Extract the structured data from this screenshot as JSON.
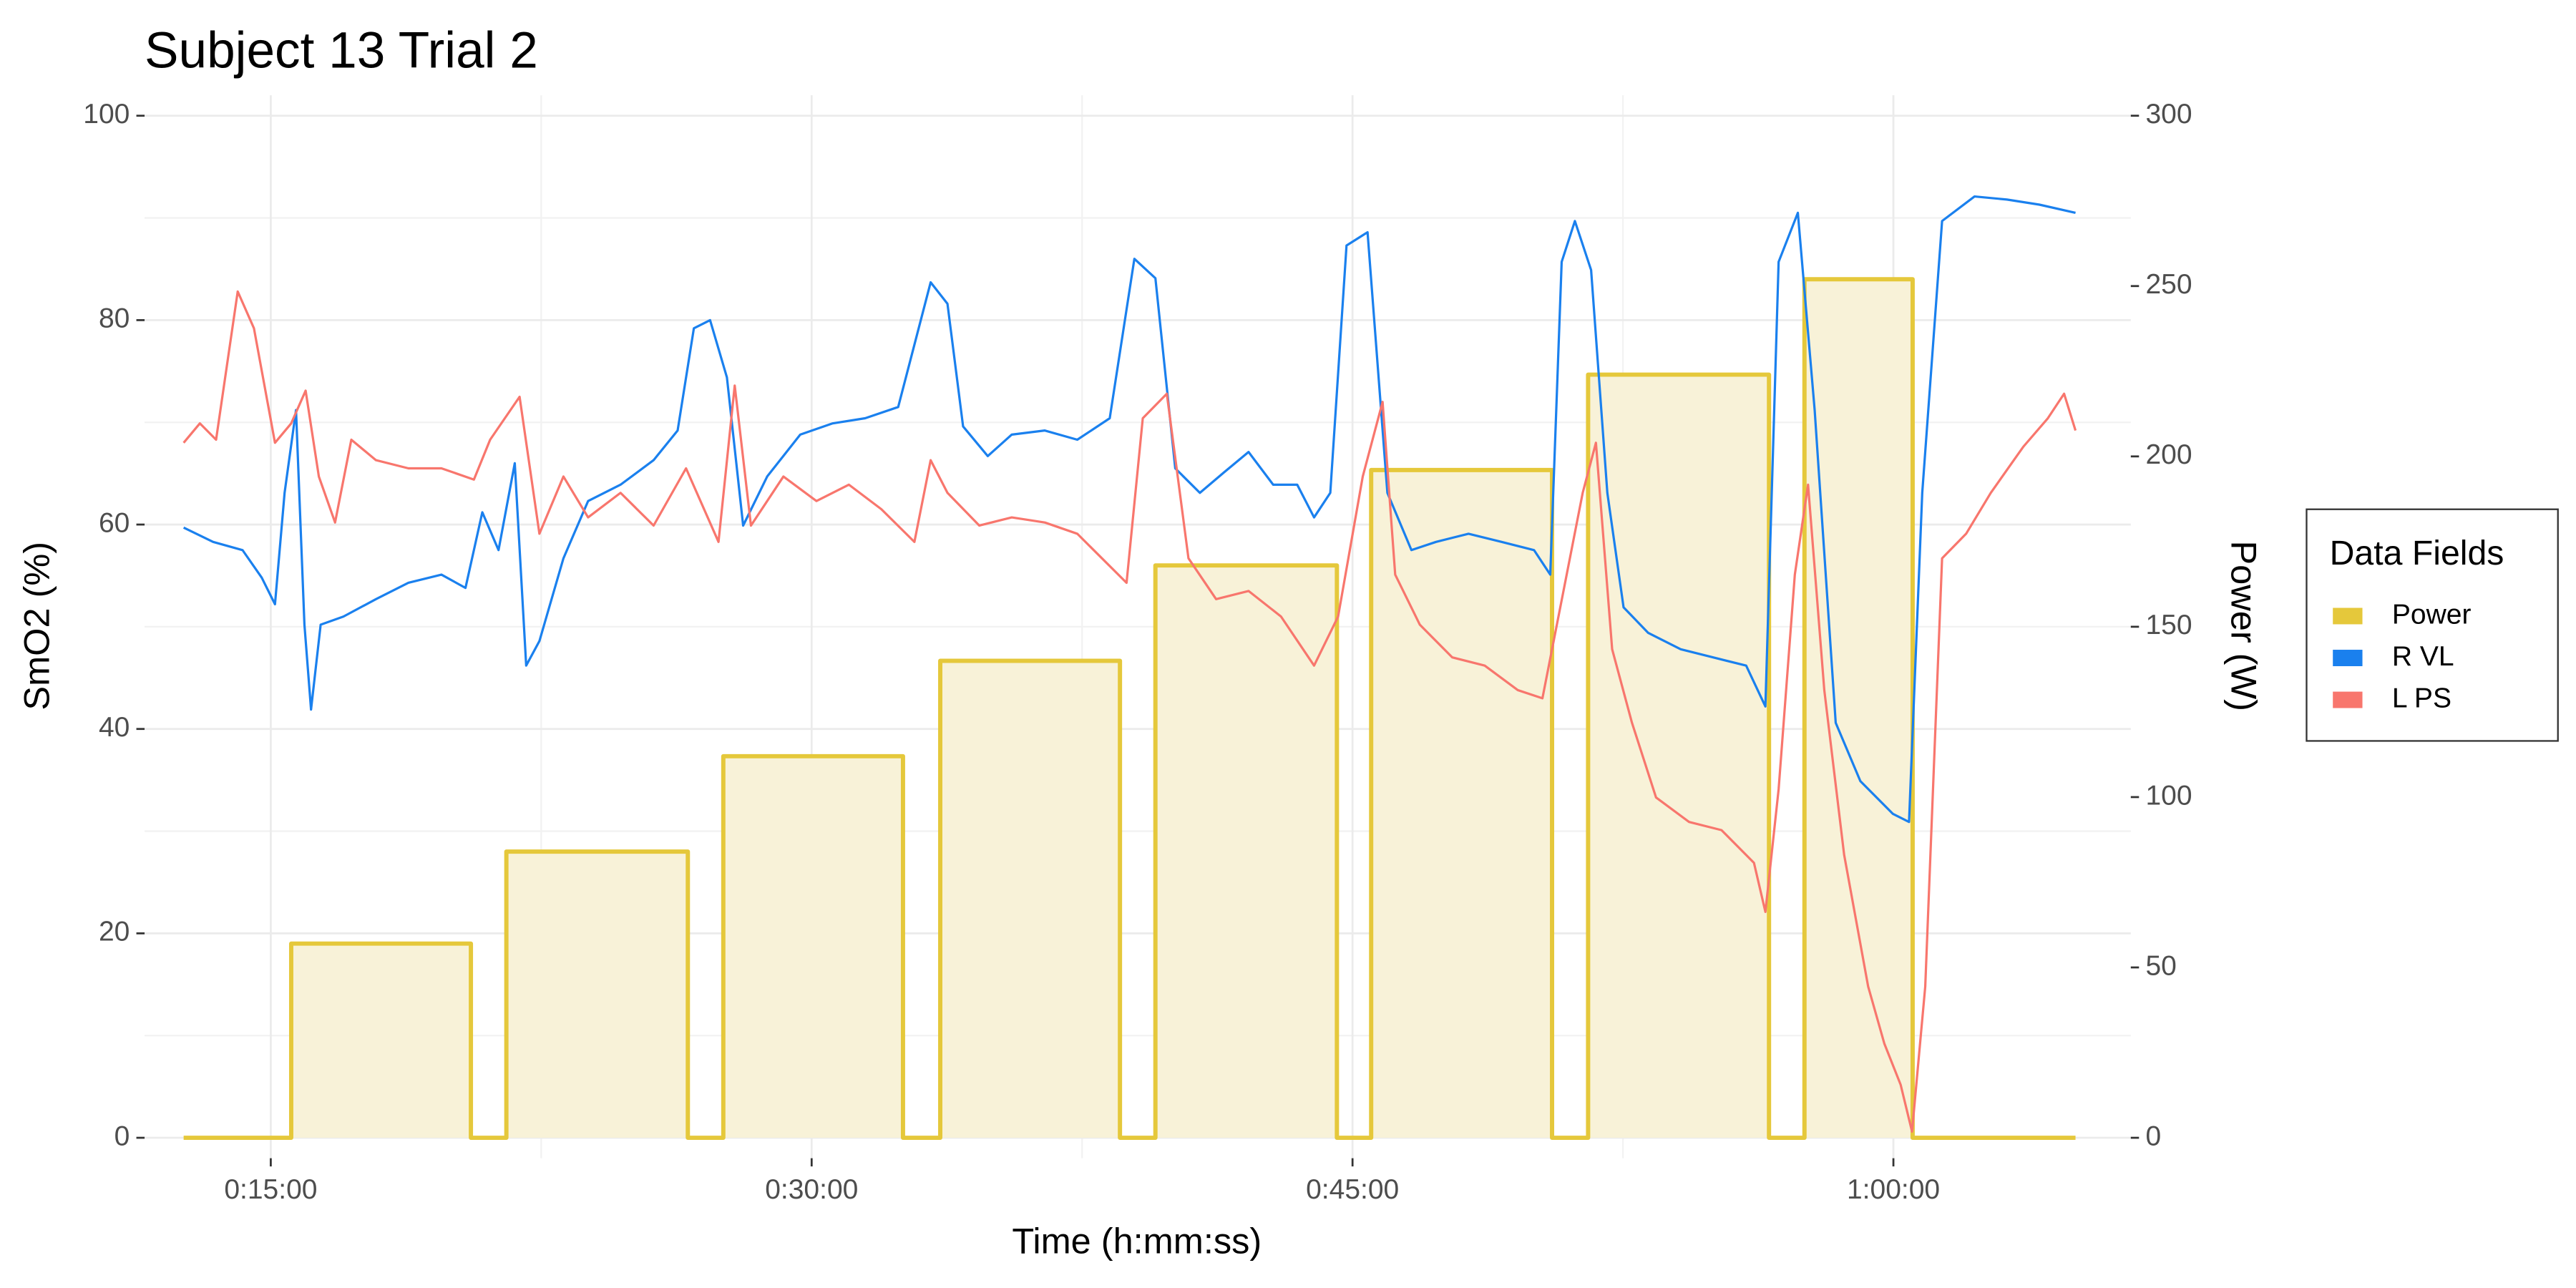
{
  "chart_data": {
    "type": "line",
    "title": "Subject 13 Trial 2",
    "x_label": "Time (h:mm:ss)",
    "y_label": "SmO2 (%)",
    "y2_label": "Power (W)",
    "legend_title": "Data Fields",
    "legend_position": "right",
    "grid": true,
    "xlim": [
      690,
      3995
    ],
    "xticks": [
      {
        "value": 900,
        "label": "0:15:00"
      },
      {
        "value": 1800,
        "label": "0:30:00"
      },
      {
        "value": 2700,
        "label": "0:45:00"
      },
      {
        "value": 3600,
        "label": "1:00:00"
      }
    ],
    "ylim": [
      -2,
      102
    ],
    "yticks": [
      0,
      20,
      40,
      60,
      80,
      100
    ],
    "y2lim": [
      -6,
      306
    ],
    "y2ticks": [
      0,
      50,
      100,
      150,
      200,
      250,
      300
    ],
    "series": [
      {
        "name": "Power",
        "color": "#e5c83b",
        "fill": "#f8f2d8",
        "axis": "y2",
        "x": [
          755,
          934,
          934,
          1233,
          1233,
          1292,
          1292,
          1594,
          1594,
          1653,
          1653,
          1952,
          1952,
          2014,
          2014,
          2313,
          2313,
          2372,
          2372,
          2674,
          2674,
          2731,
          2731,
          3032,
          3032,
          3092,
          3092,
          3393,
          3393,
          3452,
          3452,
          3632,
          3632,
          3903
        ],
        "values": [
          0,
          0,
          57,
          57,
          0,
          0,
          84,
          84,
          0,
          0,
          112,
          112,
          0,
          0,
          140,
          140,
          0,
          0,
          168,
          168,
          0,
          0,
          196,
          196,
          0,
          0,
          224,
          224,
          0,
          0,
          252,
          252,
          0,
          0
        ]
      },
      {
        "name": "R VL",
        "color": "#1a80ee",
        "x": [
          755,
          804,
          853,
          885,
          907,
          923,
          942,
          956,
          967,
          983,
          1021,
          1075,
          1129,
          1184,
          1224,
          1252,
          1279,
          1306,
          1325,
          1347,
          1387,
          1428,
          1482,
          1537,
          1577,
          1604,
          1631,
          1659,
          1686,
          1726,
          1781,
          1835,
          1889,
          1944,
          1971,
          1998,
          2026,
          2052,
          2093,
          2133,
          2188,
          2242,
          2296,
          2337,
          2372,
          2405,
          2446,
          2486,
          2527,
          2568,
          2608,
          2636,
          2663,
          2690,
          2725,
          2758,
          2798,
          2839,
          2893,
          2948,
          3002,
          3029,
          3048,
          3070,
          3097,
          3124,
          3151,
          3192,
          3246,
          3300,
          3355,
          3387,
          3409,
          3441,
          3469,
          3504,
          3545,
          3599,
          3626,
          3648,
          3681,
          3735,
          3789,
          3843,
          3903
        ],
        "values": [
          59.7,
          58.3,
          57.5,
          54.8,
          52.2,
          63.1,
          71.2,
          50.2,
          41.9,
          50.2,
          51,
          52.7,
          54.3,
          55.1,
          53.8,
          61.2,
          57.5,
          66,
          46.2,
          48.6,
          56.7,
          62.3,
          63.9,
          66.3,
          69.2,
          79.2,
          80,
          74.4,
          59.9,
          64.7,
          68.8,
          69.9,
          70.4,
          71.5,
          77.6,
          83.7,
          81.6,
          69.6,
          66.7,
          68.8,
          69.2,
          68.3,
          70.4,
          86,
          84.1,
          65.5,
          63.1,
          65.1,
          67.1,
          63.9,
          63.9,
          60.7,
          63.1,
          87.3,
          88.6,
          63.1,
          57.5,
          58.3,
          59.1,
          58.3,
          57.5,
          55.1,
          85.7,
          89.7,
          84.9,
          63.1,
          51.9,
          49.4,
          47.8,
          47,
          46.2,
          42.2,
          85.7,
          90.5,
          71.2,
          40.6,
          34.9,
          31.7,
          30.9,
          63.1,
          89.7,
          92.1,
          91.8,
          91.3,
          90.5
        ]
      },
      {
        "name": "L PS",
        "color": "#f8766d",
        "x": [
          755,
          782,
          809,
          845,
          872,
          907,
          934,
          958,
          980,
          1007,
          1034,
          1075,
          1129,
          1184,
          1238,
          1265,
          1314,
          1347,
          1387,
          1428,
          1482,
          1537,
          1591,
          1645,
          1672,
          1699,
          1753,
          1808,
          1862,
          1916,
          1971,
          1998,
          2026,
          2079,
          2133,
          2188,
          2242,
          2324,
          2351,
          2391,
          2427,
          2473,
          2527,
          2581,
          2636,
          2676,
          2717,
          2750,
          2771,
          2812,
          2866,
          2920,
          2975,
          3016,
          3051,
          3083,
          3105,
          3132,
          3165,
          3205,
          3260,
          3314,
          3368,
          3387,
          3409,
          3436,
          3458,
          3485,
          3518,
          3558,
          3585,
          3612,
          3631,
          3653,
          3681,
          3721,
          3762,
          3816,
          3857,
          3884,
          3903
        ],
        "values": [
          68,
          69.9,
          68.3,
          82.8,
          79.2,
          68,
          69.9,
          73.1,
          64.7,
          60.2,
          68.3,
          66.3,
          65.5,
          65.5,
          64.4,
          68.3,
          72.5,
          59.1,
          64.7,
          60.7,
          63.1,
          59.9,
          65.5,
          58.3,
          73.6,
          59.9,
          64.7,
          62.3,
          63.9,
          61.5,
          58.3,
          66.3,
          63.1,
          59.9,
          60.7,
          60.2,
          59.1,
          54.3,
          70.4,
          72.8,
          56.7,
          52.7,
          53.5,
          51,
          46.2,
          51,
          64.7,
          72,
          55.1,
          50.2,
          47,
          46.2,
          43.8,
          43,
          53.5,
          63.1,
          68,
          47.8,
          40.6,
          33.3,
          30.9,
          30.1,
          26.9,
          22.1,
          34.1,
          55.1,
          63.9,
          43.8,
          27.7,
          14.8,
          9.2,
          5.2,
          0.6,
          14.8,
          56.7,
          59.1,
          63.1,
          67.6,
          70.4,
          72.8,
          69.2
        ]
      }
    ]
  }
}
